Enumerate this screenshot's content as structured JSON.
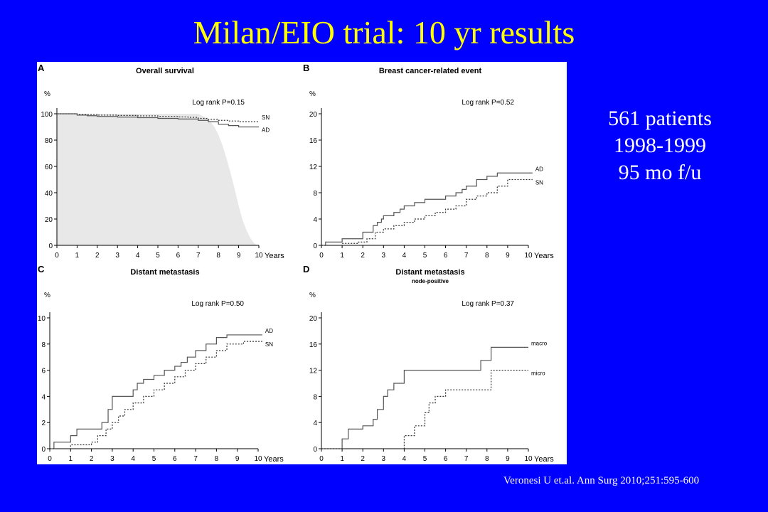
{
  "slide": {
    "title": "Milan/EIO trial: 10 yr results",
    "stats": [
      "561 patients",
      "1998-1999",
      "95 mo f/u"
    ],
    "citation": "Veronesi U et.al. Ann Surg 2010;251:595-600",
    "colors": {
      "background": "#0000ff",
      "title": "#ffff00",
      "text": "#ffffff"
    }
  },
  "chart_data": [
    {
      "type": "line",
      "panel": "A",
      "title": "Overall survival",
      "subtitle": "",
      "ylabel": "%",
      "xlabel": "Years",
      "annotation": "Log rank   P=0.15",
      "xlim": [
        0,
        10
      ],
      "ylim": [
        0,
        100
      ],
      "xticks": [
        0,
        1,
        2,
        3,
        4,
        5,
        6,
        7,
        8,
        9,
        10
      ],
      "yticks": [
        0,
        20,
        40,
        60,
        80,
        100
      ],
      "area": {
        "name": "",
        "x": [
          0,
          7.0,
          7.5,
          7.8,
          8.0,
          8.2,
          8.4,
          8.6,
          8.8,
          9.0,
          9.2,
          9.4,
          9.6,
          9.8,
          10.0
        ],
        "y": [
          100,
          100,
          96,
          90,
          84,
          76,
          66,
          55,
          43,
          30,
          19,
          11,
          5,
          1,
          0
        ]
      },
      "series": [
        {
          "name": "SN",
          "style": "dashed",
          "x": [
            0,
            1,
            2,
            3,
            4,
            5,
            6,
            6.5,
            7,
            7.5,
            8,
            8.5,
            9,
            10
          ],
          "y": [
            100,
            99.5,
            99,
            98.7,
            98.4,
            98,
            97.6,
            97.3,
            96.5,
            95.8,
            95,
            94.5,
            94,
            94
          ]
        },
        {
          "name": "AD",
          "style": "solid",
          "x": [
            0,
            1,
            1.5,
            2,
            3,
            4,
            5,
            6,
            7,
            7.5,
            8,
            8.5,
            9,
            10
          ],
          "y": [
            100,
            99,
            98.5,
            98,
            97.5,
            97,
            96.5,
            96,
            95,
            94,
            92,
            91,
            90,
            90
          ]
        }
      ]
    },
    {
      "type": "line",
      "panel": "B",
      "title": "Breast cancer-related event",
      "subtitle": "",
      "ylabel": "%",
      "xlabel": "Years",
      "annotation": "Log rank   P=0.52",
      "xlim": [
        0,
        10
      ],
      "ylim": [
        0,
        20
      ],
      "xticks": [
        0,
        1,
        2,
        3,
        4,
        5,
        6,
        7,
        8,
        9,
        10
      ],
      "yticks": [
        0,
        4,
        8,
        12,
        16,
        20
      ],
      "series": [
        {
          "name": "AD",
          "style": "solid",
          "x": [
            0,
            0.2,
            1,
            2,
            2.5,
            2.7,
            2.9,
            3,
            3.5,
            3.8,
            4,
            4.5,
            5,
            6,
            6.5,
            6.8,
            7,
            7.5,
            8,
            8.5,
            10.2
          ],
          "y": [
            0,
            0.5,
            1,
            2,
            3,
            3.5,
            4,
            4.5,
            5,
            5.5,
            6,
            6.5,
            7,
            7.5,
            8,
            8.5,
            9,
            10,
            10.5,
            11,
            11
          ]
        },
        {
          "name": "SN",
          "style": "dashed",
          "x": [
            0,
            1,
            1.8,
            2.2,
            2.6,
            3,
            3.5,
            4,
            4.5,
            5,
            5.5,
            6,
            6.5,
            7,
            7.5,
            8,
            8.5,
            9,
            10.2
          ],
          "y": [
            0,
            0.3,
            0.5,
            1,
            2,
            2.5,
            3,
            3.5,
            4,
            4.5,
            5,
            5.5,
            6,
            7,
            7.5,
            8,
            9,
            10,
            10
          ]
        }
      ]
    },
    {
      "type": "line",
      "panel": "C",
      "title": "Distant metastasis",
      "subtitle": "",
      "ylabel": "%",
      "xlabel": "Years",
      "annotation": "Log rank   P=0.50",
      "xlim": [
        0,
        10
      ],
      "ylim": [
        0,
        10
      ],
      "xticks": [
        0,
        1,
        2,
        3,
        4,
        5,
        6,
        7,
        8,
        9,
        10
      ],
      "yticks": [
        0,
        2,
        4,
        6,
        8,
        10
      ],
      "series": [
        {
          "name": "AD",
          "style": "solid",
          "x": [
            0,
            0.2,
            1,
            1.3,
            2.5,
            2.8,
            3,
            4,
            4.2,
            4.5,
            5,
            5.5,
            6,
            6.3,
            6.6,
            7,
            7.5,
            8,
            8.5,
            10.2
          ],
          "y": [
            0,
            0.5,
            1,
            1.5,
            2,
            3,
            4,
            4.5,
            5,
            5.3,
            5.6,
            6,
            6.3,
            6.6,
            7,
            7.5,
            8,
            8.5,
            8.7,
            8.7
          ]
        },
        {
          "name": "SN",
          "style": "dashed",
          "x": [
            0,
            1,
            2,
            2.3,
            2.7,
            3,
            3.3,
            3.6,
            4,
            4.5,
            5,
            5.5,
            6,
            6.5,
            7,
            7.5,
            8,
            8.5,
            9.3,
            10.2
          ],
          "y": [
            0,
            0.3,
            0.5,
            1,
            1.5,
            2,
            2.5,
            3,
            3.5,
            4,
            4.5,
            5,
            5.5,
            6,
            6.5,
            7,
            7.5,
            8,
            8.2,
            8.2
          ]
        }
      ]
    },
    {
      "type": "line",
      "panel": "D",
      "title": "Distant metastasis",
      "subtitle": "node-positive",
      "ylabel": "%",
      "xlabel": "Years",
      "annotation": "Log rank   P=0.37",
      "xlim": [
        0,
        10
      ],
      "ylim": [
        0,
        20
      ],
      "xticks": [
        0,
        1,
        2,
        3,
        4,
        5,
        6,
        7,
        8,
        9,
        10
      ],
      "yticks": [
        0,
        4,
        8,
        12,
        16,
        20
      ],
      "series": [
        {
          "name": "macro",
          "style": "solid",
          "x": [
            0,
            1,
            1.3,
            2,
            2.5,
            2.7,
            3,
            3.2,
            3.5,
            4,
            7.5,
            7.7,
            8.2,
            10
          ],
          "y": [
            0,
            1.5,
            3,
            3.5,
            4.5,
            6,
            8,
            9,
            10,
            12,
            12,
            13.5,
            15.5,
            15.5
          ]
        },
        {
          "name": "micro",
          "style": "dashed",
          "x": [
            0,
            3.5,
            4,
            4.5,
            5,
            5.2,
            5.5,
            6,
            7.5,
            8.2,
            10
          ],
          "y": [
            0,
            0,
            2,
            3.5,
            5.5,
            7,
            8,
            9,
            9,
            12,
            12
          ]
        }
      ]
    }
  ]
}
